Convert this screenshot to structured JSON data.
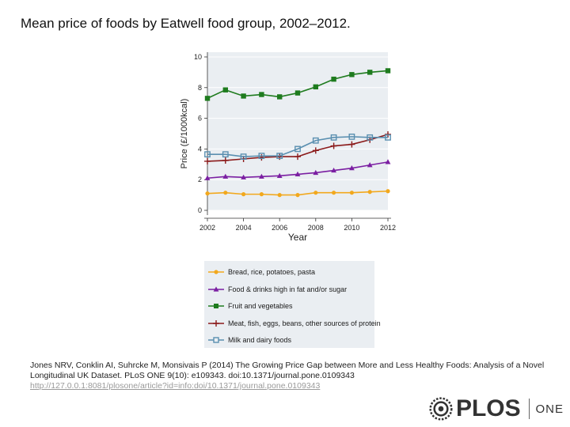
{
  "title": "Mean price of foods by Eatwell food group, 2002–2012.",
  "chart_data": {
    "type": "line",
    "xlabel": "Year",
    "ylabel": "Price (£/1000kcal)",
    "xlim": [
      2002,
      2012
    ],
    "ylim": [
      0,
      10
    ],
    "x_ticks": [
      "2002",
      "2004",
      "2006",
      "2008",
      "2010",
      "2012"
    ],
    "y_ticks": [
      "0",
      "2",
      "4",
      "6",
      "8",
      "10"
    ],
    "x": [
      2002,
      2003,
      2004,
      2005,
      2006,
      2007,
      2008,
      2009,
      2010,
      2011,
      2012
    ],
    "legend_position": "bottom",
    "series": [
      {
        "name": "Bread, rice, potatoes, pasta",
        "color": "#f2a81d",
        "marker": "circle",
        "values": [
          1.1,
          1.15,
          1.05,
          1.05,
          1.0,
          1.0,
          1.15,
          1.15,
          1.15,
          1.2,
          1.25
        ]
      },
      {
        "name": "Food & drinks high in fat and/or sugar",
        "color": "#7b1fa2",
        "marker": "triangle",
        "values": [
          2.1,
          2.2,
          2.15,
          2.2,
          2.25,
          2.35,
          2.45,
          2.6,
          2.75,
          2.95,
          3.15
        ]
      },
      {
        "name": "Fruit and vegetables",
        "color": "#1e7b1e",
        "marker": "square",
        "values": [
          7.3,
          7.85,
          7.45,
          7.55,
          7.4,
          7.65,
          8.05,
          8.55,
          8.85,
          9.0,
          9.1
        ]
      },
      {
        "name": "Meat, fish, eggs, beans, other sources of protein",
        "color": "#8b1a1a",
        "marker": "plus",
        "values": [
          3.2,
          3.25,
          3.35,
          3.45,
          3.5,
          3.5,
          3.9,
          4.2,
          4.3,
          4.6,
          4.95
        ]
      },
      {
        "name": "Milk and dairy foods",
        "color": "#5a8fb0",
        "marker": "square-open",
        "values": [
          3.65,
          3.65,
          3.5,
          3.55,
          3.55,
          4.0,
          4.55,
          4.75,
          4.8,
          4.75,
          4.75
        ]
      }
    ]
  },
  "citation": {
    "text": "Jones NRV, Conklin AI, Suhrcke M, Monsivais P (2014) The Growing Price Gap between More and Less Healthy Foods: Analysis of a Novel Longitudinal UK Dataset. PLoS ONE 9(10): e109343. doi:10.1371/journal.pone.0109343",
    "link": "http://127.0.0.1:8081/plosone/article?id=info:doi/10.1371/journal.pone.0109343"
  },
  "logo": {
    "name": "PLOS",
    "suffix": "ONE",
    "icon": "plos-logo-icon",
    "color": "#333333"
  }
}
